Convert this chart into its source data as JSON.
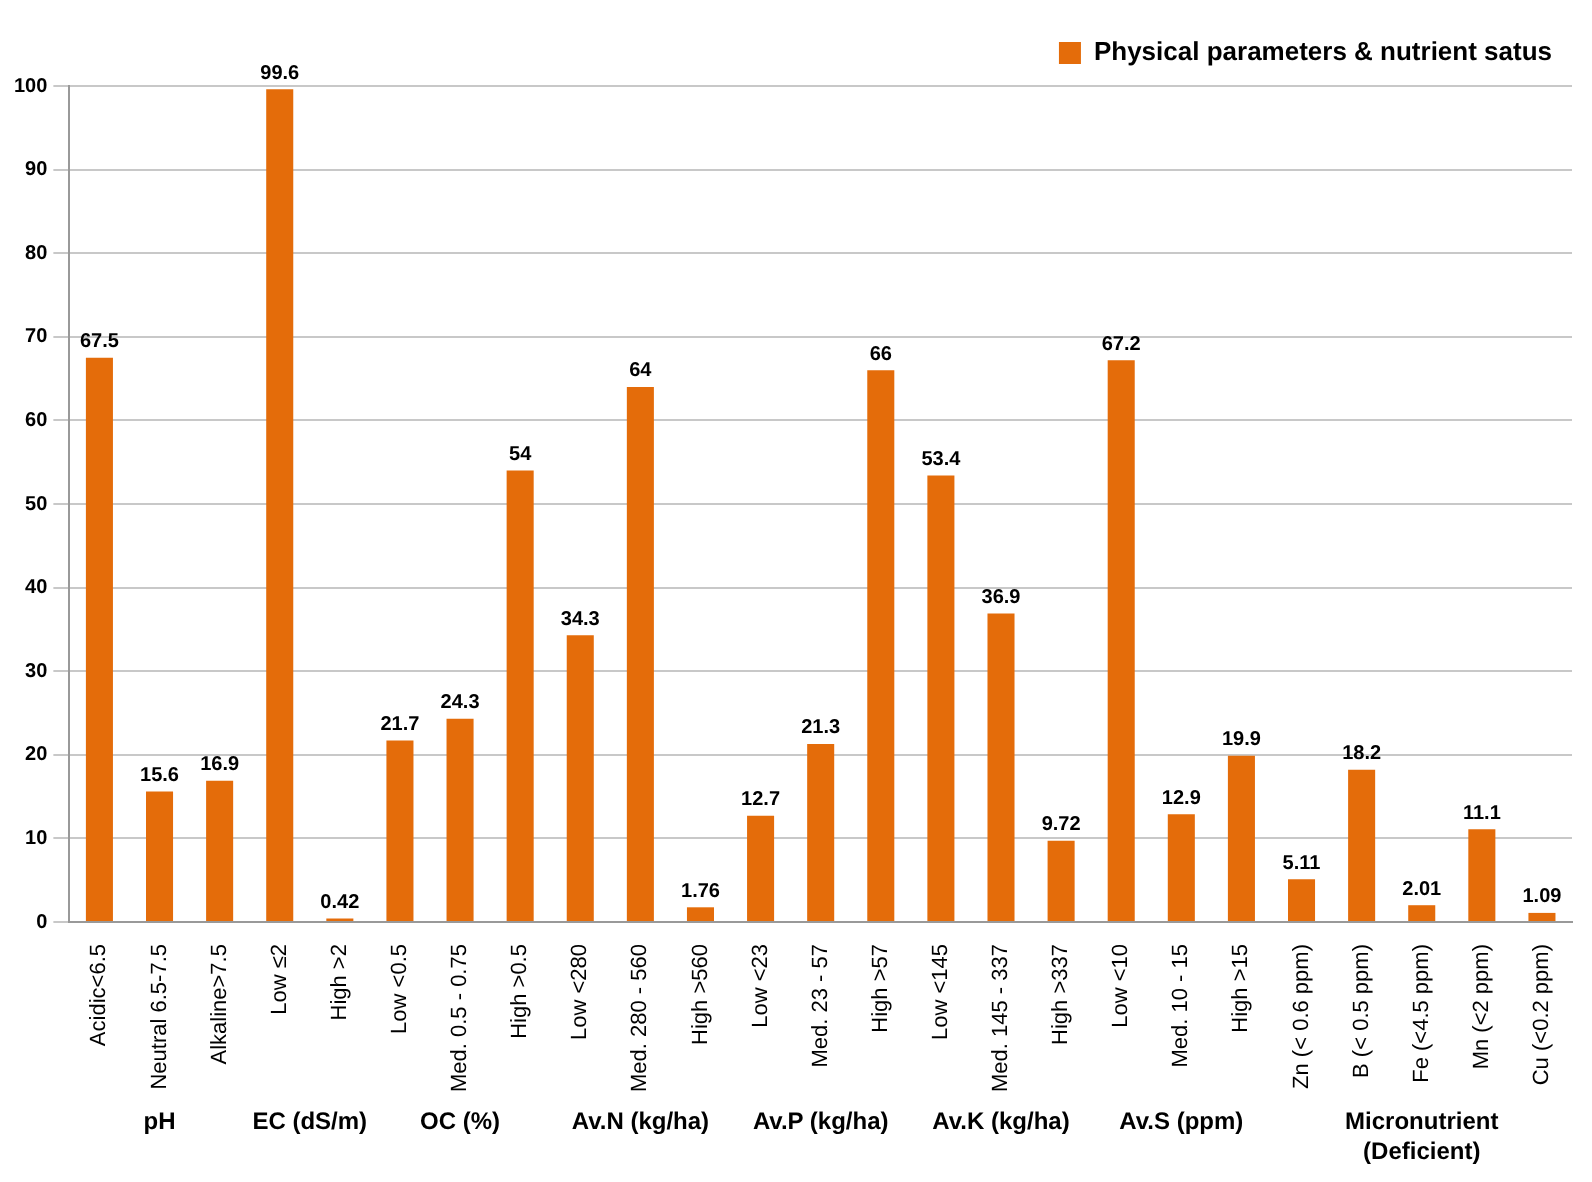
{
  "chart_data": {
    "type": "bar",
    "categories": [
      "Acidic<6.5",
      "Neutral 6.5-7.5",
      "Alkaline>7.5",
      "Low ≤2",
      "High >2",
      "Low <0.5",
      "Med. 0.5 - 0.75",
      "High >0.5",
      "Low <280",
      "Med. 280 - 560",
      "High >560",
      "Low <23",
      "Med. 23 - 57",
      "High >57",
      "Low <145",
      "Med. 145 - 337",
      "High >337",
      "Low <10",
      "Med. 10 - 15",
      "High >15",
      "Zn (< 0.6 ppm)",
      "B (< 0.5 ppm)",
      "Fe (<4.5 ppm)",
      "Mn (<2 ppm)",
      "Cu (<0.2 ppm)"
    ],
    "series": [
      {
        "name": "Physical parameters & nutrient satus",
        "color": "#e46c0a",
        "values": [
          67.5,
          15.6,
          16.9,
          99.6,
          0.42,
          21.7,
          24.3,
          54,
          34.3,
          64,
          1.76,
          12.7,
          21.3,
          66,
          53.4,
          36.9,
          9.72,
          67.2,
          12.9,
          19.9,
          5.11,
          18.2,
          2.01,
          11.1,
          1.09
        ]
      }
    ],
    "ylim": [
      0,
      100
    ],
    "yticks": [
      0,
      10,
      20,
      30,
      40,
      50,
      60,
      70,
      80,
      90,
      100
    ],
    "grid": "y",
    "legend": "top right",
    "data_labels": true,
    "annotations": [
      "pH",
      "EC (dS/m)",
      "OC (%)",
      "Av.N (kg/ha)",
      "Av.P (kg/ha)",
      "Av.K (kg/ha)",
      "Av.S (ppm)",
      "Micronutrient (Deficient)"
    ]
  }
}
